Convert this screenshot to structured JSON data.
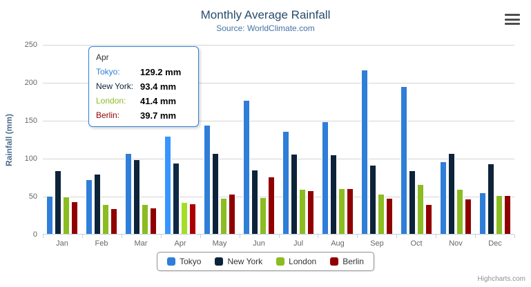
{
  "chart_data": {
    "type": "bar",
    "title": "Monthly Average Rainfall",
    "subtitle": "Source: WorldClimate.com",
    "xlabel": "",
    "ylabel": "Rainfall (mm)",
    "categories": [
      "Jan",
      "Feb",
      "Mar",
      "Apr",
      "May",
      "Jun",
      "Jul",
      "Aug",
      "Sep",
      "Oct",
      "Nov",
      "Dec"
    ],
    "series": [
      {
        "name": "Tokyo",
        "color": "#2f7ed8",
        "values": [
          49.9,
          71.5,
          106.4,
          129.2,
          144.0,
          176.0,
          135.6,
          148.5,
          216.4,
          194.1,
          95.6,
          54.4
        ]
      },
      {
        "name": "New York",
        "color": "#0d233a",
        "values": [
          83.6,
          78.8,
          98.5,
          93.4,
          106.0,
          84.5,
          105.0,
          104.3,
          91.2,
          83.5,
          106.6,
          92.3
        ]
      },
      {
        "name": "London",
        "color": "#8bbc21",
        "values": [
          48.9,
          38.8,
          39.3,
          41.4,
          47.0,
          48.3,
          59.0,
          59.6,
          52.4,
          65.2,
          59.3,
          51.2
        ]
      },
      {
        "name": "Berlin",
        "color": "#910000",
        "values": [
          42.4,
          33.2,
          34.5,
          39.7,
          52.6,
          75.5,
          57.4,
          60.4,
          47.6,
          39.1,
          46.8,
          51.1
        ]
      }
    ],
    "ylim": [
      0,
      250
    ],
    "y_ticks": [
      0,
      50,
      100,
      150,
      200,
      250
    ],
    "grid": true,
    "legend_position": "bottom",
    "hover_category": "Apr"
  },
  "tooltip": {
    "header": "Apr",
    "border_color": "#2f7ed8",
    "rows": [
      {
        "label": "Tokyo:",
        "value": "129.2 mm",
        "color": "#2f7ed8"
      },
      {
        "label": "New York:",
        "value": "93.4 mm",
        "color": "#0d233a"
      },
      {
        "label": "London:",
        "value": "41.4 mm",
        "color": "#8bbc21"
      },
      {
        "label": "Berlin:",
        "value": "39.7 mm",
        "color": "#910000"
      }
    ]
  },
  "credits": "Highcharts.com"
}
